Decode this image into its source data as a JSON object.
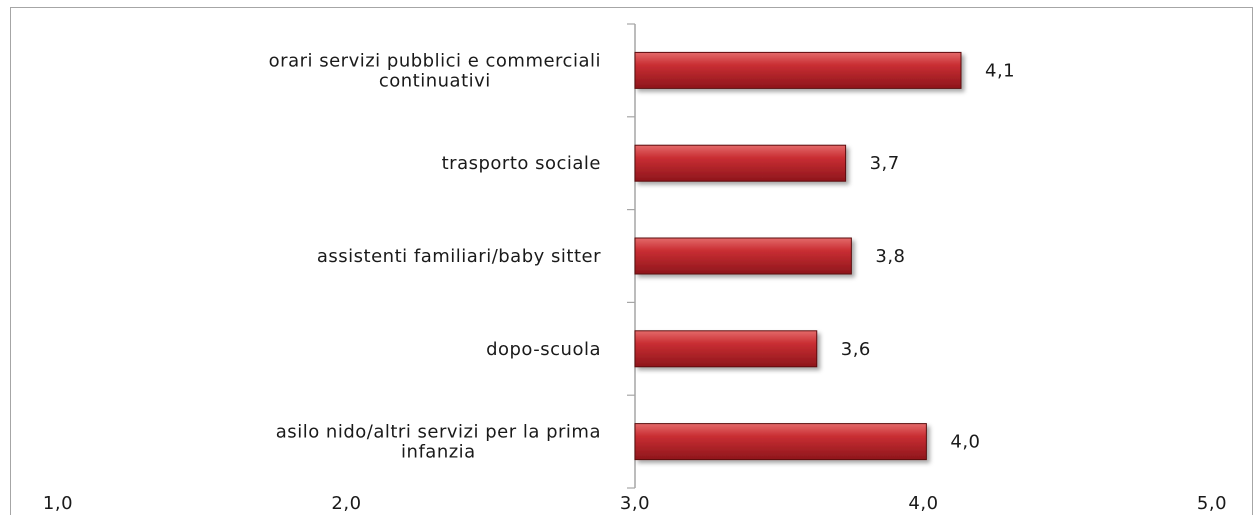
{
  "chart_data": {
    "type": "bar",
    "orientation": "horizontal",
    "categories": [
      [
        "orari servizi pubblici e commerciali",
        "continuativi"
      ],
      [
        "trasporto sociale"
      ],
      [
        "assistenti familiari/baby sitter"
      ],
      [
        "dopo-scuola"
      ],
      [
        "asilo nido/altri servizi per la prima",
        "infanzia"
      ]
    ],
    "values": [
      4.13,
      3.73,
      3.75,
      3.63,
      4.01
    ],
    "value_labels": [
      "4,1",
      "3,7",
      "3,8",
      "3,6",
      "4,0"
    ],
    "x_ticks": [
      "1,0",
      "2,0",
      "3,0",
      "4,0",
      "5,0"
    ],
    "x_tick_values": [
      1,
      2,
      3,
      4,
      5
    ],
    "xlim": [
      1,
      5
    ],
    "bar_base": 3,
    "title": "",
    "xlabel": "",
    "ylabel": "",
    "grid": false,
    "legend": "none",
    "colors": {
      "bar_light": "#e05555",
      "bar_main": "#c0272d",
      "bar_dark": "#8a1218",
      "bar_edge": "#5c0c10",
      "axis": "#a6a6a6"
    }
  }
}
